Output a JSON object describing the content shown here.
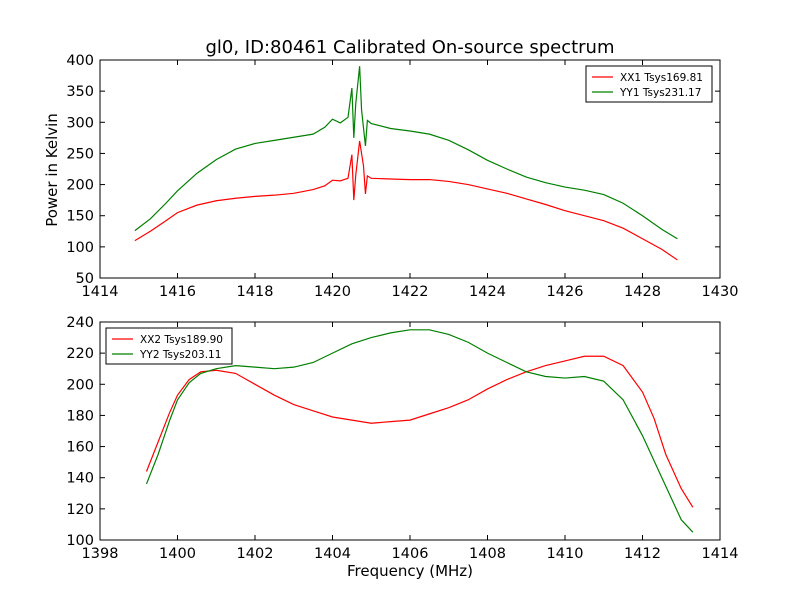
{
  "title": "gl0, ID:80461 Calibrated On-source spectrum",
  "colors": {
    "red": "#ff0000",
    "green": "#008000"
  },
  "chart_data": [
    {
      "type": "line",
      "ylabel": "Power in Kelvin",
      "xlabel": "",
      "xlim": [
        1414,
        1430
      ],
      "ylim": [
        50,
        400
      ],
      "xticks": [
        "1414",
        "1416",
        "1418",
        "1420",
        "1422",
        "1424",
        "1426",
        "1428",
        "1430"
      ],
      "yticks": [
        "50",
        "100",
        "150",
        "200",
        "250",
        "300",
        "350",
        "400"
      ],
      "legend_position": "top-right",
      "series": [
        {
          "name": "XX1 Tsys169.81",
          "color": "#ff0000",
          "points": [
            [
              1414.9,
              110
            ],
            [
              1415.3,
              125
            ],
            [
              1415.7,
              142
            ],
            [
              1416.0,
              155
            ],
            [
              1416.5,
              167
            ],
            [
              1417.0,
              174
            ],
            [
              1417.5,
              178
            ],
            [
              1418.0,
              181
            ],
            [
              1418.5,
              183
            ],
            [
              1419.0,
              186
            ],
            [
              1419.5,
              192
            ],
            [
              1419.8,
              198
            ],
            [
              1420.0,
              207
            ],
            [
              1420.2,
              206
            ],
            [
              1420.4,
              210
            ],
            [
              1420.5,
              248
            ],
            [
              1420.55,
              175
            ],
            [
              1420.6,
              215
            ],
            [
              1420.7,
              270
            ],
            [
              1420.8,
              230
            ],
            [
              1420.85,
              185
            ],
            [
              1420.9,
              214
            ],
            [
              1421.0,
              210
            ],
            [
              1421.5,
              209
            ],
            [
              1422.0,
              208
            ],
            [
              1422.5,
              208
            ],
            [
              1423.0,
              205
            ],
            [
              1423.5,
              200
            ],
            [
              1424.0,
              193
            ],
            [
              1424.5,
              186
            ],
            [
              1425.0,
              177
            ],
            [
              1425.5,
              168
            ],
            [
              1426.0,
              158
            ],
            [
              1426.5,
              150
            ],
            [
              1427.0,
              142
            ],
            [
              1427.5,
              130
            ],
            [
              1428.0,
              113
            ],
            [
              1428.5,
              96
            ],
            [
              1428.9,
              79
            ]
          ]
        },
        {
          "name": "YY1 Tsys231.17",
          "color": "#008000",
          "points": [
            [
              1414.9,
              126
            ],
            [
              1415.3,
              145
            ],
            [
              1415.7,
              170
            ],
            [
              1416.0,
              190
            ],
            [
              1416.5,
              218
            ],
            [
              1417.0,
              240
            ],
            [
              1417.5,
              257
            ],
            [
              1418.0,
              266
            ],
            [
              1418.5,
              271
            ],
            [
              1419.0,
              276
            ],
            [
              1419.5,
              281
            ],
            [
              1419.8,
              292
            ],
            [
              1420.0,
              305
            ],
            [
              1420.2,
              299
            ],
            [
              1420.4,
              308
            ],
            [
              1420.5,
              355
            ],
            [
              1420.55,
              275
            ],
            [
              1420.6,
              330
            ],
            [
              1420.7,
              390
            ],
            [
              1420.75,
              320
            ],
            [
              1420.85,
              262
            ],
            [
              1420.9,
              303
            ],
            [
              1421.0,
              298
            ],
            [
              1421.5,
              290
            ],
            [
              1422.0,
              286
            ],
            [
              1422.5,
              281
            ],
            [
              1423.0,
              271
            ],
            [
              1423.5,
              256
            ],
            [
              1424.0,
              239
            ],
            [
              1424.5,
              225
            ],
            [
              1425.0,
              212
            ],
            [
              1425.5,
              203
            ],
            [
              1426.0,
              196
            ],
            [
              1426.5,
              191
            ],
            [
              1427.0,
              184
            ],
            [
              1427.5,
              170
            ],
            [
              1428.0,
              150
            ],
            [
              1428.5,
              128
            ],
            [
              1428.9,
              113
            ]
          ]
        }
      ]
    },
    {
      "type": "line",
      "xlabel": "Frequency (MHz)",
      "ylabel": "",
      "xlim": [
        1398,
        1414
      ],
      "ylim": [
        100,
        240
      ],
      "xticks": [
        "1398",
        "1400",
        "1402",
        "1404",
        "1406",
        "1408",
        "1410",
        "1412",
        "1414"
      ],
      "yticks": [
        "100",
        "120",
        "140",
        "160",
        "180",
        "200",
        "220",
        "240"
      ],
      "legend_position": "top-left",
      "series": [
        {
          "name": "XX2 Tsys189.90",
          "color": "#ff0000",
          "points": [
            [
              1399.2,
              144
            ],
            [
              1399.5,
              163
            ],
            [
              1399.8,
              182
            ],
            [
              1400.0,
              193
            ],
            [
              1400.3,
              203
            ],
            [
              1400.6,
              208
            ],
            [
              1401.0,
              209
            ],
            [
              1401.5,
              207
            ],
            [
              1402.0,
              200
            ],
            [
              1402.5,
              193
            ],
            [
              1403.0,
              187
            ],
            [
              1403.5,
              183
            ],
            [
              1404.0,
              179
            ],
            [
              1404.5,
              177
            ],
            [
              1405.0,
              175
            ],
            [
              1405.5,
              176
            ],
            [
              1406.0,
              177
            ],
            [
              1406.5,
              181
            ],
            [
              1407.0,
              185
            ],
            [
              1407.5,
              190
            ],
            [
              1408.0,
              197
            ],
            [
              1408.5,
              203
            ],
            [
              1409.0,
              208
            ],
            [
              1409.5,
              212
            ],
            [
              1410.0,
              215
            ],
            [
              1410.5,
              218
            ],
            [
              1411.0,
              218
            ],
            [
              1411.5,
              212
            ],
            [
              1412.0,
              195
            ],
            [
              1412.3,
              178
            ],
            [
              1412.6,
              155
            ],
            [
              1413.0,
              133
            ],
            [
              1413.3,
              121
            ]
          ]
        },
        {
          "name": "YY2 Tsys203.11",
          "color": "#008000",
          "points": [
            [
              1399.2,
              136
            ],
            [
              1399.5,
              155
            ],
            [
              1399.8,
              177
            ],
            [
              1400.0,
              190
            ],
            [
              1400.3,
              201
            ],
            [
              1400.6,
              207
            ],
            [
              1401.0,
              210
            ],
            [
              1401.5,
              212
            ],
            [
              1402.0,
              211
            ],
            [
              1402.5,
              210
            ],
            [
              1403.0,
              211
            ],
            [
              1403.5,
              214
            ],
            [
              1404.0,
              220
            ],
            [
              1404.5,
              226
            ],
            [
              1405.0,
              230
            ],
            [
              1405.5,
              233
            ],
            [
              1406.0,
              235
            ],
            [
              1406.5,
              235
            ],
            [
              1407.0,
              232
            ],
            [
              1407.5,
              227
            ],
            [
              1408.0,
              220
            ],
            [
              1408.5,
              214
            ],
            [
              1409.0,
              208
            ],
            [
              1409.5,
              205
            ],
            [
              1410.0,
              204
            ],
            [
              1410.5,
              205
            ],
            [
              1411.0,
              202
            ],
            [
              1411.5,
              190
            ],
            [
              1412.0,
              167
            ],
            [
              1412.5,
              140
            ],
            [
              1413.0,
              113
            ],
            [
              1413.3,
              105
            ]
          ]
        }
      ]
    }
  ]
}
